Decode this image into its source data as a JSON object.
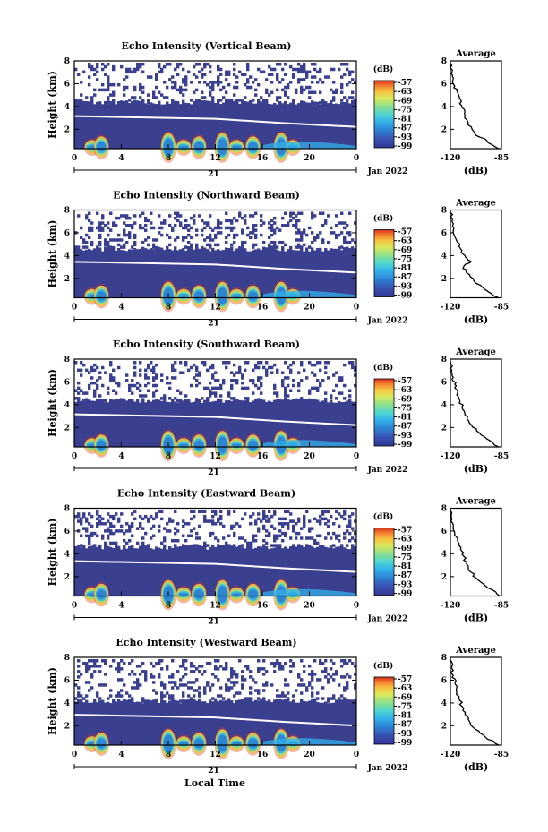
{
  "figure": {
    "xlabel": "Local Time",
    "date_day": "21",
    "date_label": "Jan 2022"
  },
  "chart_data": [
    {
      "type": "heatmap",
      "title": "Echo Intensity (Vertical Beam)",
      "ylabel": "Height (km)",
      "xlabel": "Local Time",
      "x_ticks": [
        "0",
        "4",
        "8",
        "12",
        "16",
        "20",
        "0"
      ],
      "y_ticks": [
        "2",
        "4",
        "6",
        "8"
      ],
      "xlim": [
        0,
        24
      ],
      "ylim": [
        0.3,
        8
      ],
      "colorbar": {
        "label": "(dB)",
        "ticks": [
          "-57",
          "-63",
          "-69",
          "-75",
          "-81",
          "-87",
          "-93",
          "-99"
        ],
        "range": [
          -99,
          -57
        ]
      },
      "layers": {
        "dense_top_km": 3.0,
        "mid_top_km": 4.4,
        "sparse_top_km": 8.0
      },
      "average": {
        "title": "Average",
        "xlabel": "(dB)",
        "x_ticks": [
          "-120",
          "-85"
        ],
        "y_ticks": [
          "2",
          "4",
          "6",
          "8"
        ],
        "xlim": [
          -120,
          -85
        ],
        "ylim": [
          0.3,
          8
        ],
        "profile": [
          [
            -87,
            0.3
          ],
          [
            -95,
            1.0
          ],
          [
            -103,
            1.6
          ],
          [
            -108,
            2.4
          ],
          [
            -110,
            3.2
          ],
          [
            -112,
            3.9
          ],
          [
            -113,
            4.6
          ],
          [
            -115,
            5.2
          ],
          [
            -117,
            5.8
          ],
          [
            -118,
            6.5
          ],
          [
            -119,
            7.0
          ],
          [
            -120,
            7.8
          ]
        ]
      }
    },
    {
      "type": "heatmap",
      "title": "Echo Intensity (Northward Beam)",
      "ylabel": "Height (km)",
      "xlabel": "Local Time",
      "x_ticks": [
        "0",
        "4",
        "8",
        "12",
        "16",
        "20",
        "0"
      ],
      "y_ticks": [
        "2",
        "4",
        "6",
        "8"
      ],
      "xlim": [
        0,
        24
      ],
      "ylim": [
        0.3,
        8
      ],
      "colorbar": {
        "label": "(dB)",
        "ticks": [
          "-57",
          "-63",
          "-69",
          "-75",
          "-81",
          "-87",
          "-93",
          "-99"
        ],
        "range": [
          -99,
          -57
        ]
      },
      "layers": {
        "dense_top_km": 3.3,
        "mid_top_km": 4.6,
        "sparse_top_km": 8.0
      },
      "average": {
        "title": "Average",
        "xlabel": "(dB)",
        "x_ticks": [
          "-120",
          "-85"
        ],
        "y_ticks": [
          "2",
          "4",
          "6",
          "8"
        ],
        "xlim": [
          -120,
          -85
        ],
        "ylim": [
          0.3,
          8
        ],
        "profile": [
          [
            -87,
            0.3
          ],
          [
            -96,
            1.0
          ],
          [
            -104,
            1.8
          ],
          [
            -109,
            2.5
          ],
          [
            -111,
            3.0
          ],
          [
            -106,
            3.5
          ],
          [
            -110,
            4.0
          ],
          [
            -113,
            4.6
          ],
          [
            -116,
            5.4
          ],
          [
            -118,
            6.2
          ],
          [
            -119,
            7.0
          ],
          [
            -120,
            7.8
          ]
        ]
      }
    },
    {
      "type": "heatmap",
      "title": "Echo Intensity (Southward Beam)",
      "ylabel": "Height (km)",
      "xlabel": "Local Time",
      "x_ticks": [
        "0",
        "4",
        "8",
        "12",
        "16",
        "20",
        "0"
      ],
      "y_ticks": [
        "2",
        "4",
        "6",
        "8"
      ],
      "xlim": [
        0,
        24
      ],
      "ylim": [
        0.3,
        8
      ],
      "colorbar": {
        "label": "(dB)",
        "ticks": [
          "-57",
          "-63",
          "-69",
          "-75",
          "-81",
          "-87",
          "-93",
          "-99"
        ],
        "range": [
          -99,
          -57
        ]
      },
      "layers": {
        "dense_top_km": 3.0,
        "mid_top_km": 4.4,
        "sparse_top_km": 8.0
      },
      "average": {
        "title": "Average",
        "xlabel": "(dB)",
        "x_ticks": [
          "-120",
          "-85"
        ],
        "y_ticks": [
          "2",
          "4",
          "6",
          "8"
        ],
        "xlim": [
          -120,
          -85
        ],
        "ylim": [
          0.3,
          8
        ],
        "profile": [
          [
            -87,
            0.3
          ],
          [
            -95,
            1.0
          ],
          [
            -102,
            1.7
          ],
          [
            -107,
            2.4
          ],
          [
            -110,
            3.1
          ],
          [
            -112,
            3.8
          ],
          [
            -114,
            4.5
          ],
          [
            -115,
            5.2
          ],
          [
            -117,
            5.8
          ],
          [
            -118,
            6.4
          ],
          [
            -119,
            7.0
          ],
          [
            -120,
            7.8
          ]
        ]
      }
    },
    {
      "type": "heatmap",
      "title": "Echo Intensity (Eastward Beam)",
      "ylabel": "Height (km)",
      "xlabel": "Local Time",
      "x_ticks": [
        "0",
        "4",
        "8",
        "12",
        "16",
        "20",
        "0"
      ],
      "y_ticks": [
        "2",
        "4",
        "6",
        "8"
      ],
      "xlim": [
        0,
        24
      ],
      "ylim": [
        0.3,
        8
      ],
      "colorbar": {
        "label": "(dB)",
        "ticks": [
          "-57",
          "-63",
          "-69",
          "-75",
          "-81",
          "-87",
          "-93",
          "-99"
        ],
        "range": [
          -99,
          -57
        ]
      },
      "layers": {
        "dense_top_km": 3.2,
        "mid_top_km": 4.6,
        "sparse_top_km": 8.0
      },
      "average": {
        "title": "Average",
        "xlabel": "(dB)",
        "x_ticks": [
          "-120",
          "-85"
        ],
        "y_ticks": [
          "2",
          "4",
          "6",
          "8"
        ],
        "xlim": [
          -120,
          -85
        ],
        "ylim": [
          0.3,
          8
        ],
        "profile": [
          [
            -86,
            0.3
          ],
          [
            -94,
            1.0
          ],
          [
            -101,
            1.7
          ],
          [
            -106,
            2.4
          ],
          [
            -109,
            3.1
          ],
          [
            -111,
            3.8
          ],
          [
            -113,
            4.4
          ],
          [
            -115,
            5.1
          ],
          [
            -117,
            5.8
          ],
          [
            -118,
            6.4
          ],
          [
            -119,
            7.0
          ],
          [
            -120,
            7.8
          ]
        ]
      }
    },
    {
      "type": "heatmap",
      "title": "Echo Intensity (Westward Beam)",
      "ylabel": "Height (km)",
      "xlabel": "Local Time",
      "x_ticks": [
        "0",
        "4",
        "8",
        "12",
        "16",
        "20",
        "0"
      ],
      "y_ticks": [
        "2",
        "4",
        "6",
        "8"
      ],
      "xlim": [
        0,
        24
      ],
      "ylim": [
        0.3,
        8
      ],
      "colorbar": {
        "label": "(dB)",
        "ticks": [
          "-57",
          "-63",
          "-69",
          "-75",
          "-81",
          "-87",
          "-93",
          "-99"
        ],
        "range": [
          -99,
          -57
        ]
      },
      "layers": {
        "dense_top_km": 2.8,
        "mid_top_km": 4.2,
        "sparse_top_km": 8.0
      },
      "average": {
        "title": "Average",
        "xlabel": "(dB)",
        "x_ticks": [
          "-120",
          "-85"
        ],
        "y_ticks": [
          "2",
          "4",
          "6",
          "8"
        ],
        "xlim": [
          -120,
          -85
        ],
        "ylim": [
          0.3,
          8
        ],
        "profile": [
          [
            -87,
            0.3
          ],
          [
            -96,
            1.0
          ],
          [
            -103,
            1.7
          ],
          [
            -107,
            2.4
          ],
          [
            -110,
            3.0
          ],
          [
            -112,
            3.7
          ],
          [
            -114,
            4.4
          ],
          [
            -116,
            5.1
          ],
          [
            -117,
            5.8
          ],
          [
            -118,
            6.4
          ],
          [
            -119,
            7.0
          ],
          [
            -120,
            7.8
          ]
        ]
      }
    }
  ],
  "colors": {
    "colorbar_scale": [
      "#313695",
      "#3a4fb0",
      "#2e7fd3",
      "#31b0ea",
      "#4fd6d0",
      "#8ee08a",
      "#dbe85a",
      "#f6c141",
      "#f37a2c",
      "#d7301f"
    ],
    "background_layer": "#3b3f8f"
  }
}
